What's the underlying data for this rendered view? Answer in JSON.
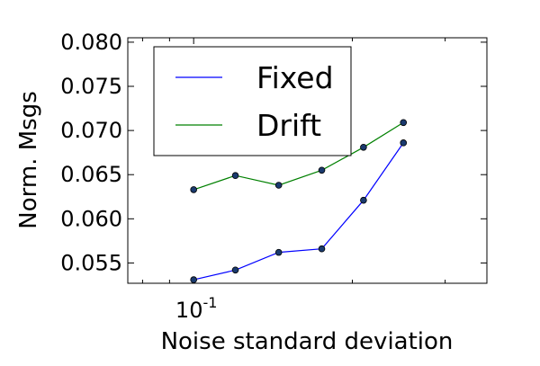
{
  "chart_data": {
    "type": "line",
    "xlabel": "Noise standard deviation",
    "ylabel": "Norm. Msgs",
    "x_scale": "log",
    "xlim": [
      0.075,
      0.36
    ],
    "ylim": [
      0.0527,
      0.0805
    ],
    "x_ticks": [
      {
        "value": 0.1,
        "base": "10",
        "exponent": "-1"
      }
    ],
    "y_ticks": [
      "0.055",
      "0.060",
      "0.065",
      "0.070",
      "0.075",
      "0.080"
    ],
    "y_tick_values": [
      0.055,
      0.06,
      0.065,
      0.07,
      0.075,
      0.08
    ],
    "legend_position": "top-left",
    "grid": false,
    "series": [
      {
        "name": "Fixed",
        "color": "#0000ff",
        "x": [
          0.1,
          0.12,
          0.145,
          0.175,
          0.21,
          0.25
        ],
        "y": [
          0.0531,
          0.0542,
          0.0562,
          0.0566,
          0.0621,
          0.0686
        ]
      },
      {
        "name": "Drift",
        "color": "#008000",
        "x": [
          0.1,
          0.12,
          0.145,
          0.175,
          0.21,
          0.25
        ],
        "y": [
          0.0633,
          0.0649,
          0.0638,
          0.0655,
          0.0681,
          0.0709
        ]
      }
    ]
  }
}
